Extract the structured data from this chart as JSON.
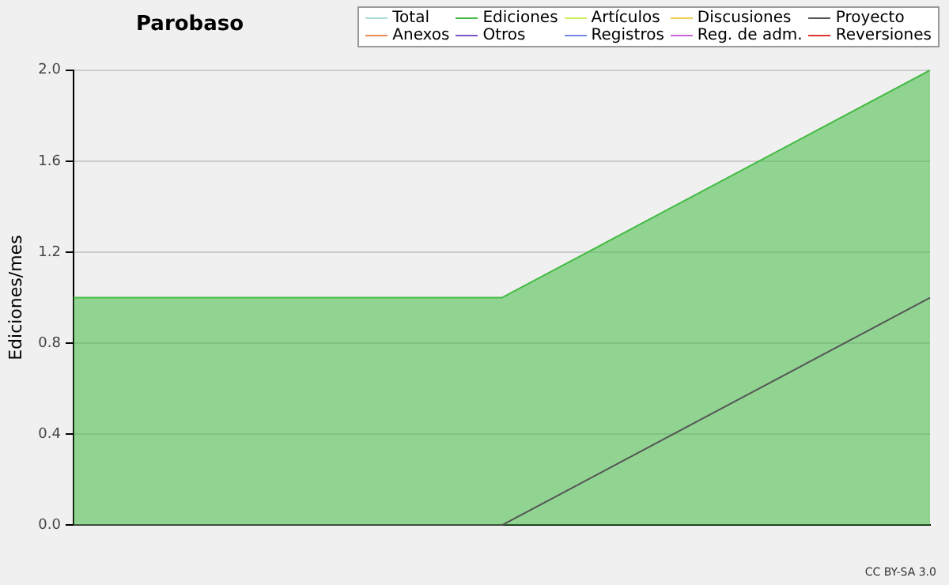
{
  "chart_data": {
    "type": "line",
    "title": "Parobaso",
    "ylabel": "Ediciones/mes",
    "categories": [
      null,
      null,
      null
    ],
    "ylim": [
      0,
      2
    ],
    "yticks": [
      {
        "value": 0,
        "label": "0.0"
      },
      0.4,
      0.8,
      1.2,
      1.6,
      {
        "value": 2,
        "label": "2.0"
      }
    ],
    "grid": "y",
    "legend": "top right",
    "marker": "none",
    "annotations": [
      "CC BY-SA 3.0"
    ],
    "series": [
      {
        "name": "Total",
        "color": "#aadddd",
        "values": [
          null,
          null,
          null
        ]
      },
      {
        "name": "Ediciones",
        "color": "#44bb44",
        "type": "area",
        "values": [
          1,
          1,
          2
        ]
      },
      {
        "name": "Artículos",
        "color": "#ccee66",
        "values": [
          null,
          null,
          null
        ]
      },
      {
        "name": "Discusiones",
        "color": "#eecc55",
        "values": [
          null,
          null,
          null
        ]
      },
      {
        "name": "Proyecto",
        "color": "#555555",
        "values": [
          0,
          0,
          1
        ]
      },
      {
        "name": "Anexos",
        "color": "#ee8855",
        "values": [
          null,
          null,
          null
        ]
      },
      {
        "name": "Otros",
        "color": "#7755cc",
        "values": [
          null,
          null,
          null
        ]
      },
      {
        "name": "Registros",
        "color": "#7788ee",
        "values": [
          null,
          null,
          null
        ]
      },
      {
        "name": "Reg. de adm.",
        "color": "#cc66dd",
        "values": [
          null,
          null,
          null
        ]
      },
      {
        "name": "Reversiones",
        "color": "#dd3333",
        "values": [
          null,
          null,
          null
        ]
      }
    ]
  }
}
